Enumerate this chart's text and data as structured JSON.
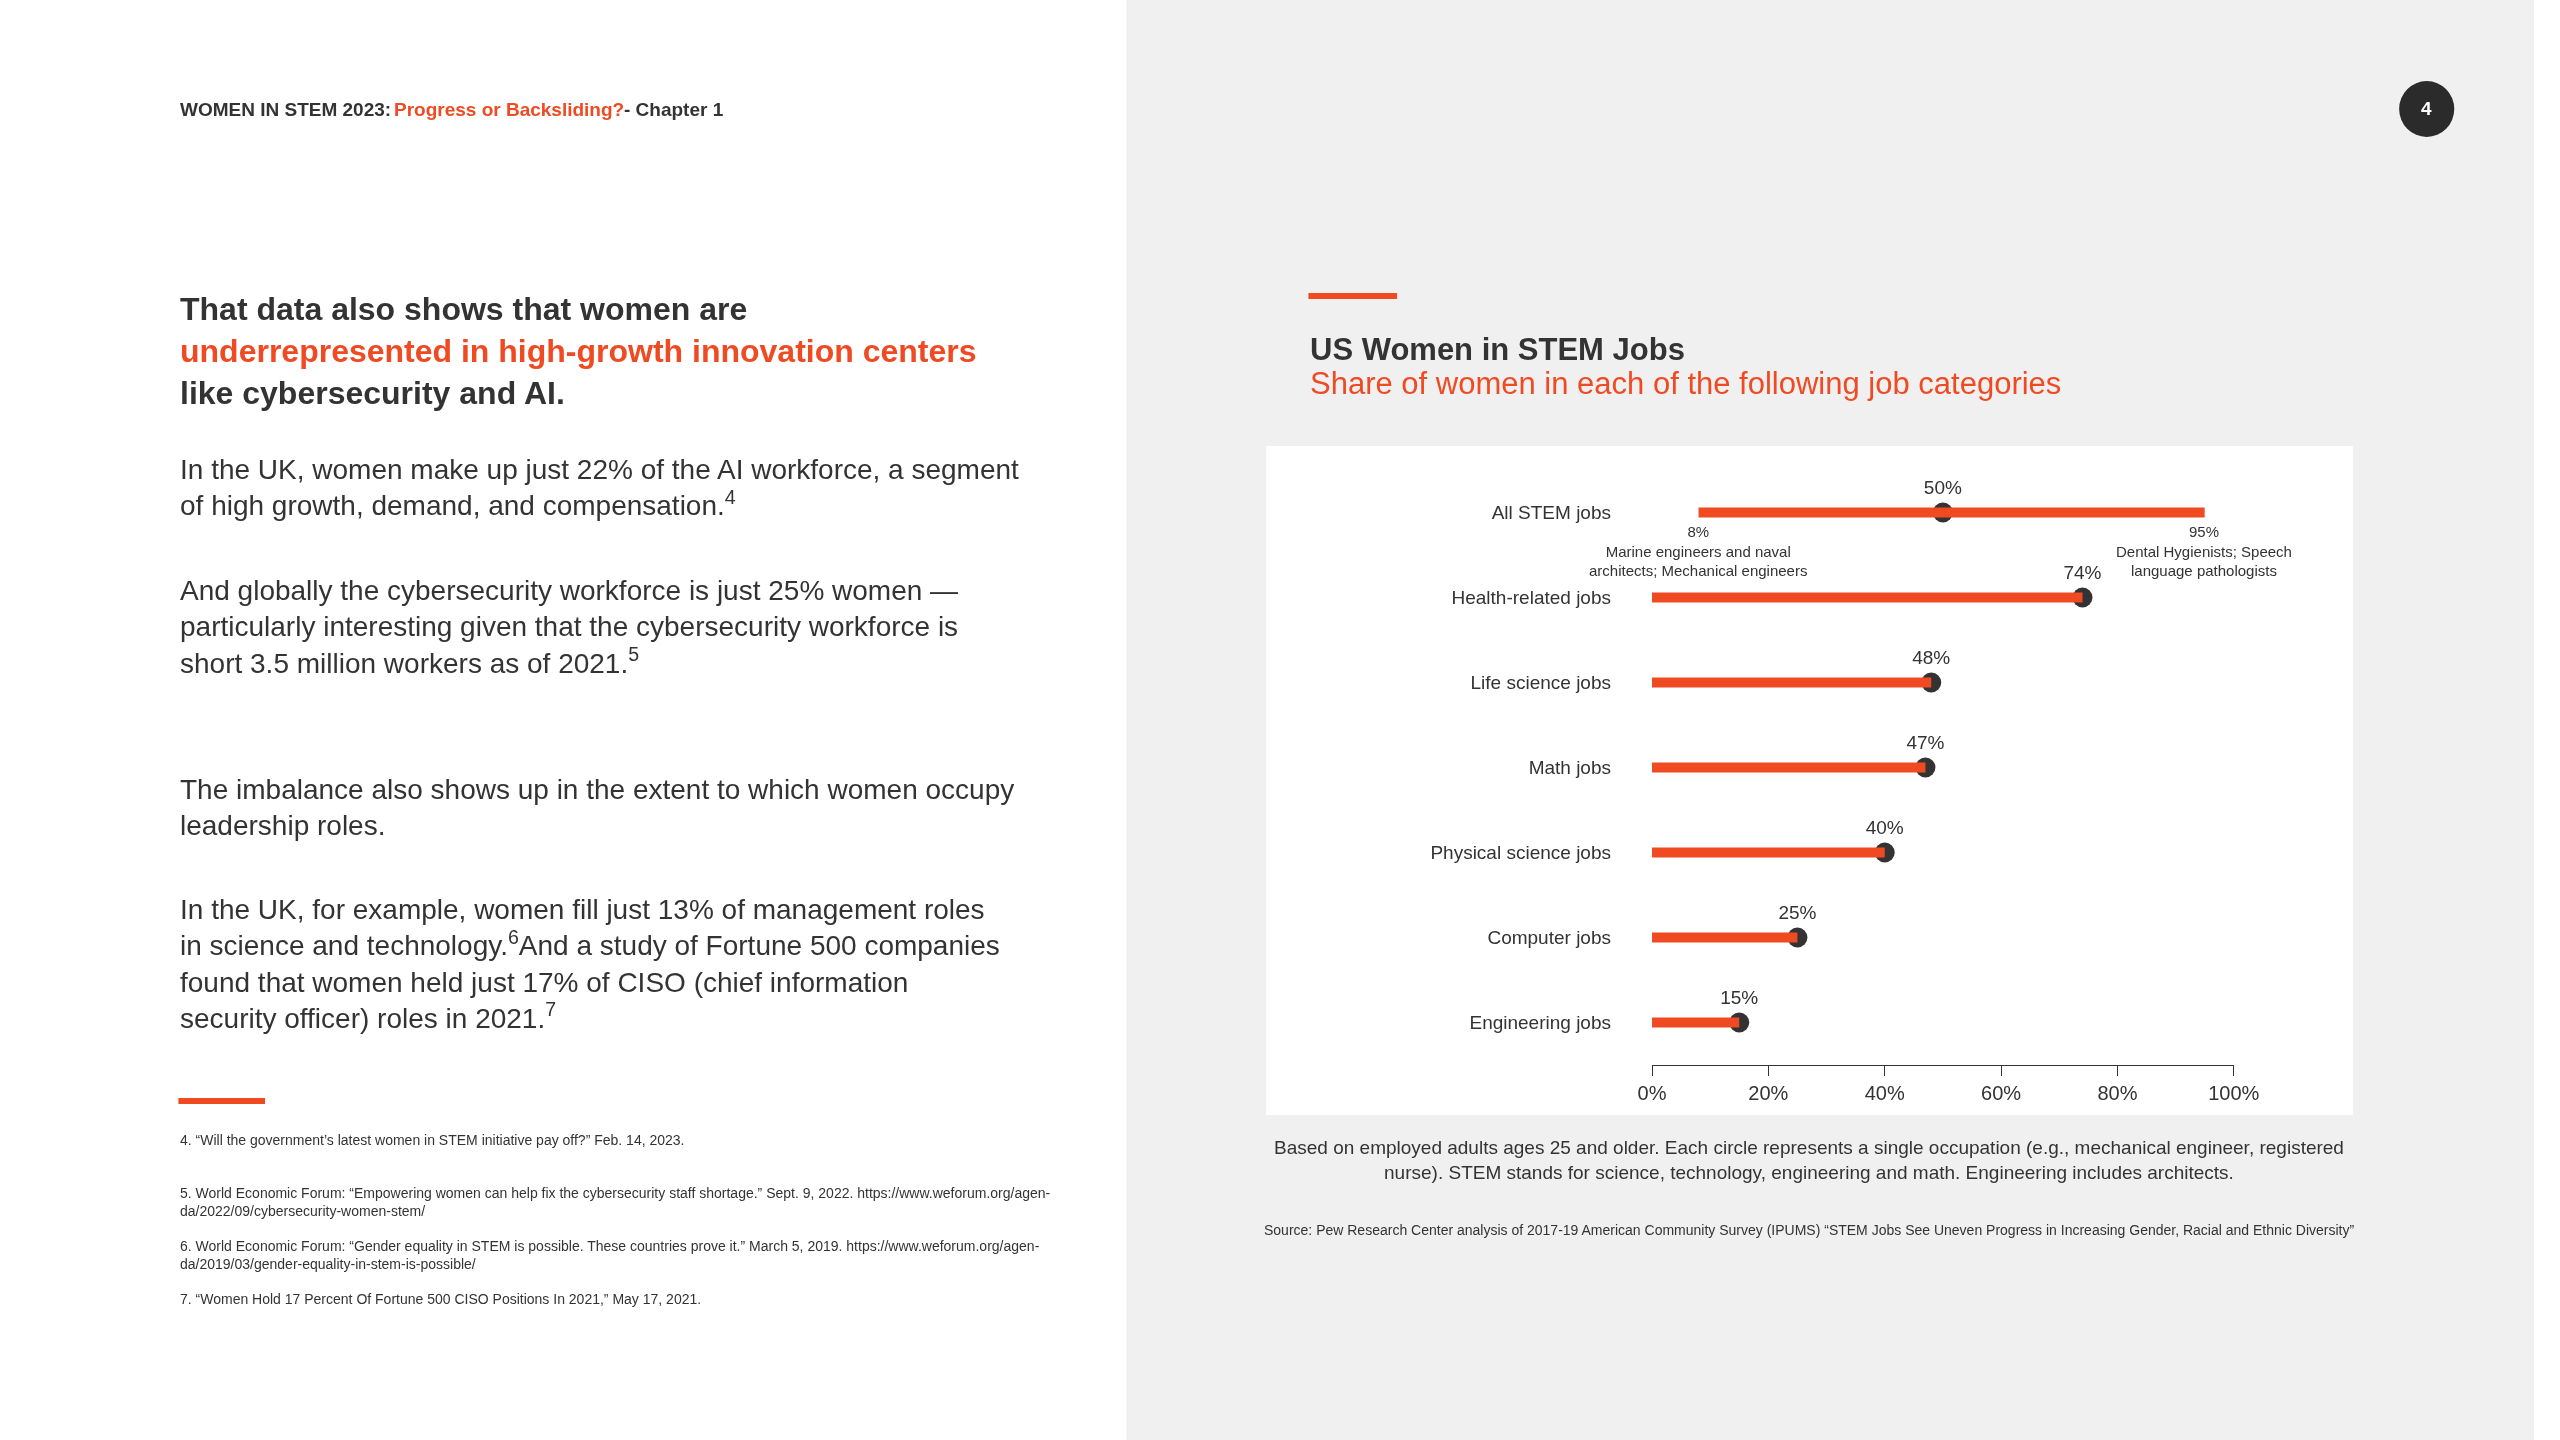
{
  "chart_data": {
    "type": "bar",
    "orientation": "horizontal",
    "title": "US Women in STEM Jobs",
    "subtitle": "Share of women in each of the following job categories",
    "categories": [
      "All STEM jobs",
      "Health-related jobs",
      "Life science jobs",
      "Math jobs",
      "Physical science jobs",
      "Computer jobs",
      "Engineering jobs"
    ],
    "series": [
      {
        "color": "#f04a23",
        "base": [
          8,
          0,
          0,
          0,
          0,
          0,
          0
        ],
        "values": [
          87,
          74,
          48,
          47,
          40,
          25,
          15
        ]
      },
      {
        "type": "scatter",
        "color": "#333333",
        "values": [
          50,
          74,
          48,
          47,
          40,
          25,
          15
        ],
        "value_labels": [
          "50%",
          "74%",
          "48%",
          "47%",
          "40%",
          "25%",
          "15%"
        ]
      }
    ],
    "xlim": [
      0,
      100
    ],
    "xticks": [
      {
        "value": 0,
        "label": "0%"
      },
      {
        "value": 20,
        "label": "20%"
      },
      {
        "value": 40,
        "label": "40%"
      },
      {
        "value": 60,
        "label": "60%"
      },
      {
        "value": 80,
        "label": "80%"
      },
      {
        "value": 100,
        "label": "100%"
      }
    ],
    "marker": "circle",
    "annotations": [
      "8%\nMarine engineers and naval\narchitects; Mechanical engineers",
      "95%\nDental Hygienists; Speech\nlanguage pathologists",
      "Based on employed adults ages 25 and older. Each circle represents a single occupation (e.g., mechanical engineer, registered\nnurse). STEM stands for science, technology, engineering and math. Engineering includes architects.",
      "Source: Pew Research Center analysis of 2017-19 American Community Survey (IPUMS) “STEM Jobs See Uneven Progress in Increasing Gender, Racial and Ethnic Diversity”",
      "WOMEN IN STEM 2023:",
      "Progress or Backsliding?",
      "- Chapter 1",
      "4",
      "That data also shows that women are",
      "underrepresented in high-growth innovation centers",
      "like cybersecurity and AI.",
      "In the UK, women make up just 22% of the AI workforce, a segment\nof high growth, demand, and compensation.$^{4}$",
      "And globally the cybersecurity workforce is just 25% women —\nparticularly interesting given that the cybersecurity workforce is\nshort 3.5 million workers as of 2021.$^{5}$",
      "The imbalance also shows up in the extent to which women occupy\nleadership roles.",
      "In the UK, for example, women fill just 13% of management roles\nin science and technology.$^{6}$And a study of Fortune 500 companies\nfound that women held just 17% of CISO (chief information\nsecurity officer) roles in 2021.$^{7}$",
      "4. “Will the government’s latest women in STEM initiative pay off?” Feb. 14, 2023.",
      "5. World Economic Forum: “Empowering women can help fix the cybersecurity staff shortage.” Sept. 9, 2022. https://www.weforum.org/agen-\nda/2022/09/cybersecurity-women-stem/",
      "6. World Economic Forum: “Gender equality in STEM is possible. These countries prove it.” March 5, 2019. https://www.weforum.org/agen-\nda/2019/03/gender-equality-in-stem-is-possible/",
      "7. “Women Hold 17 Percent Of Fortune 500 CISO Positions In 2021,” May 17, 2021."
    ]
  }
}
